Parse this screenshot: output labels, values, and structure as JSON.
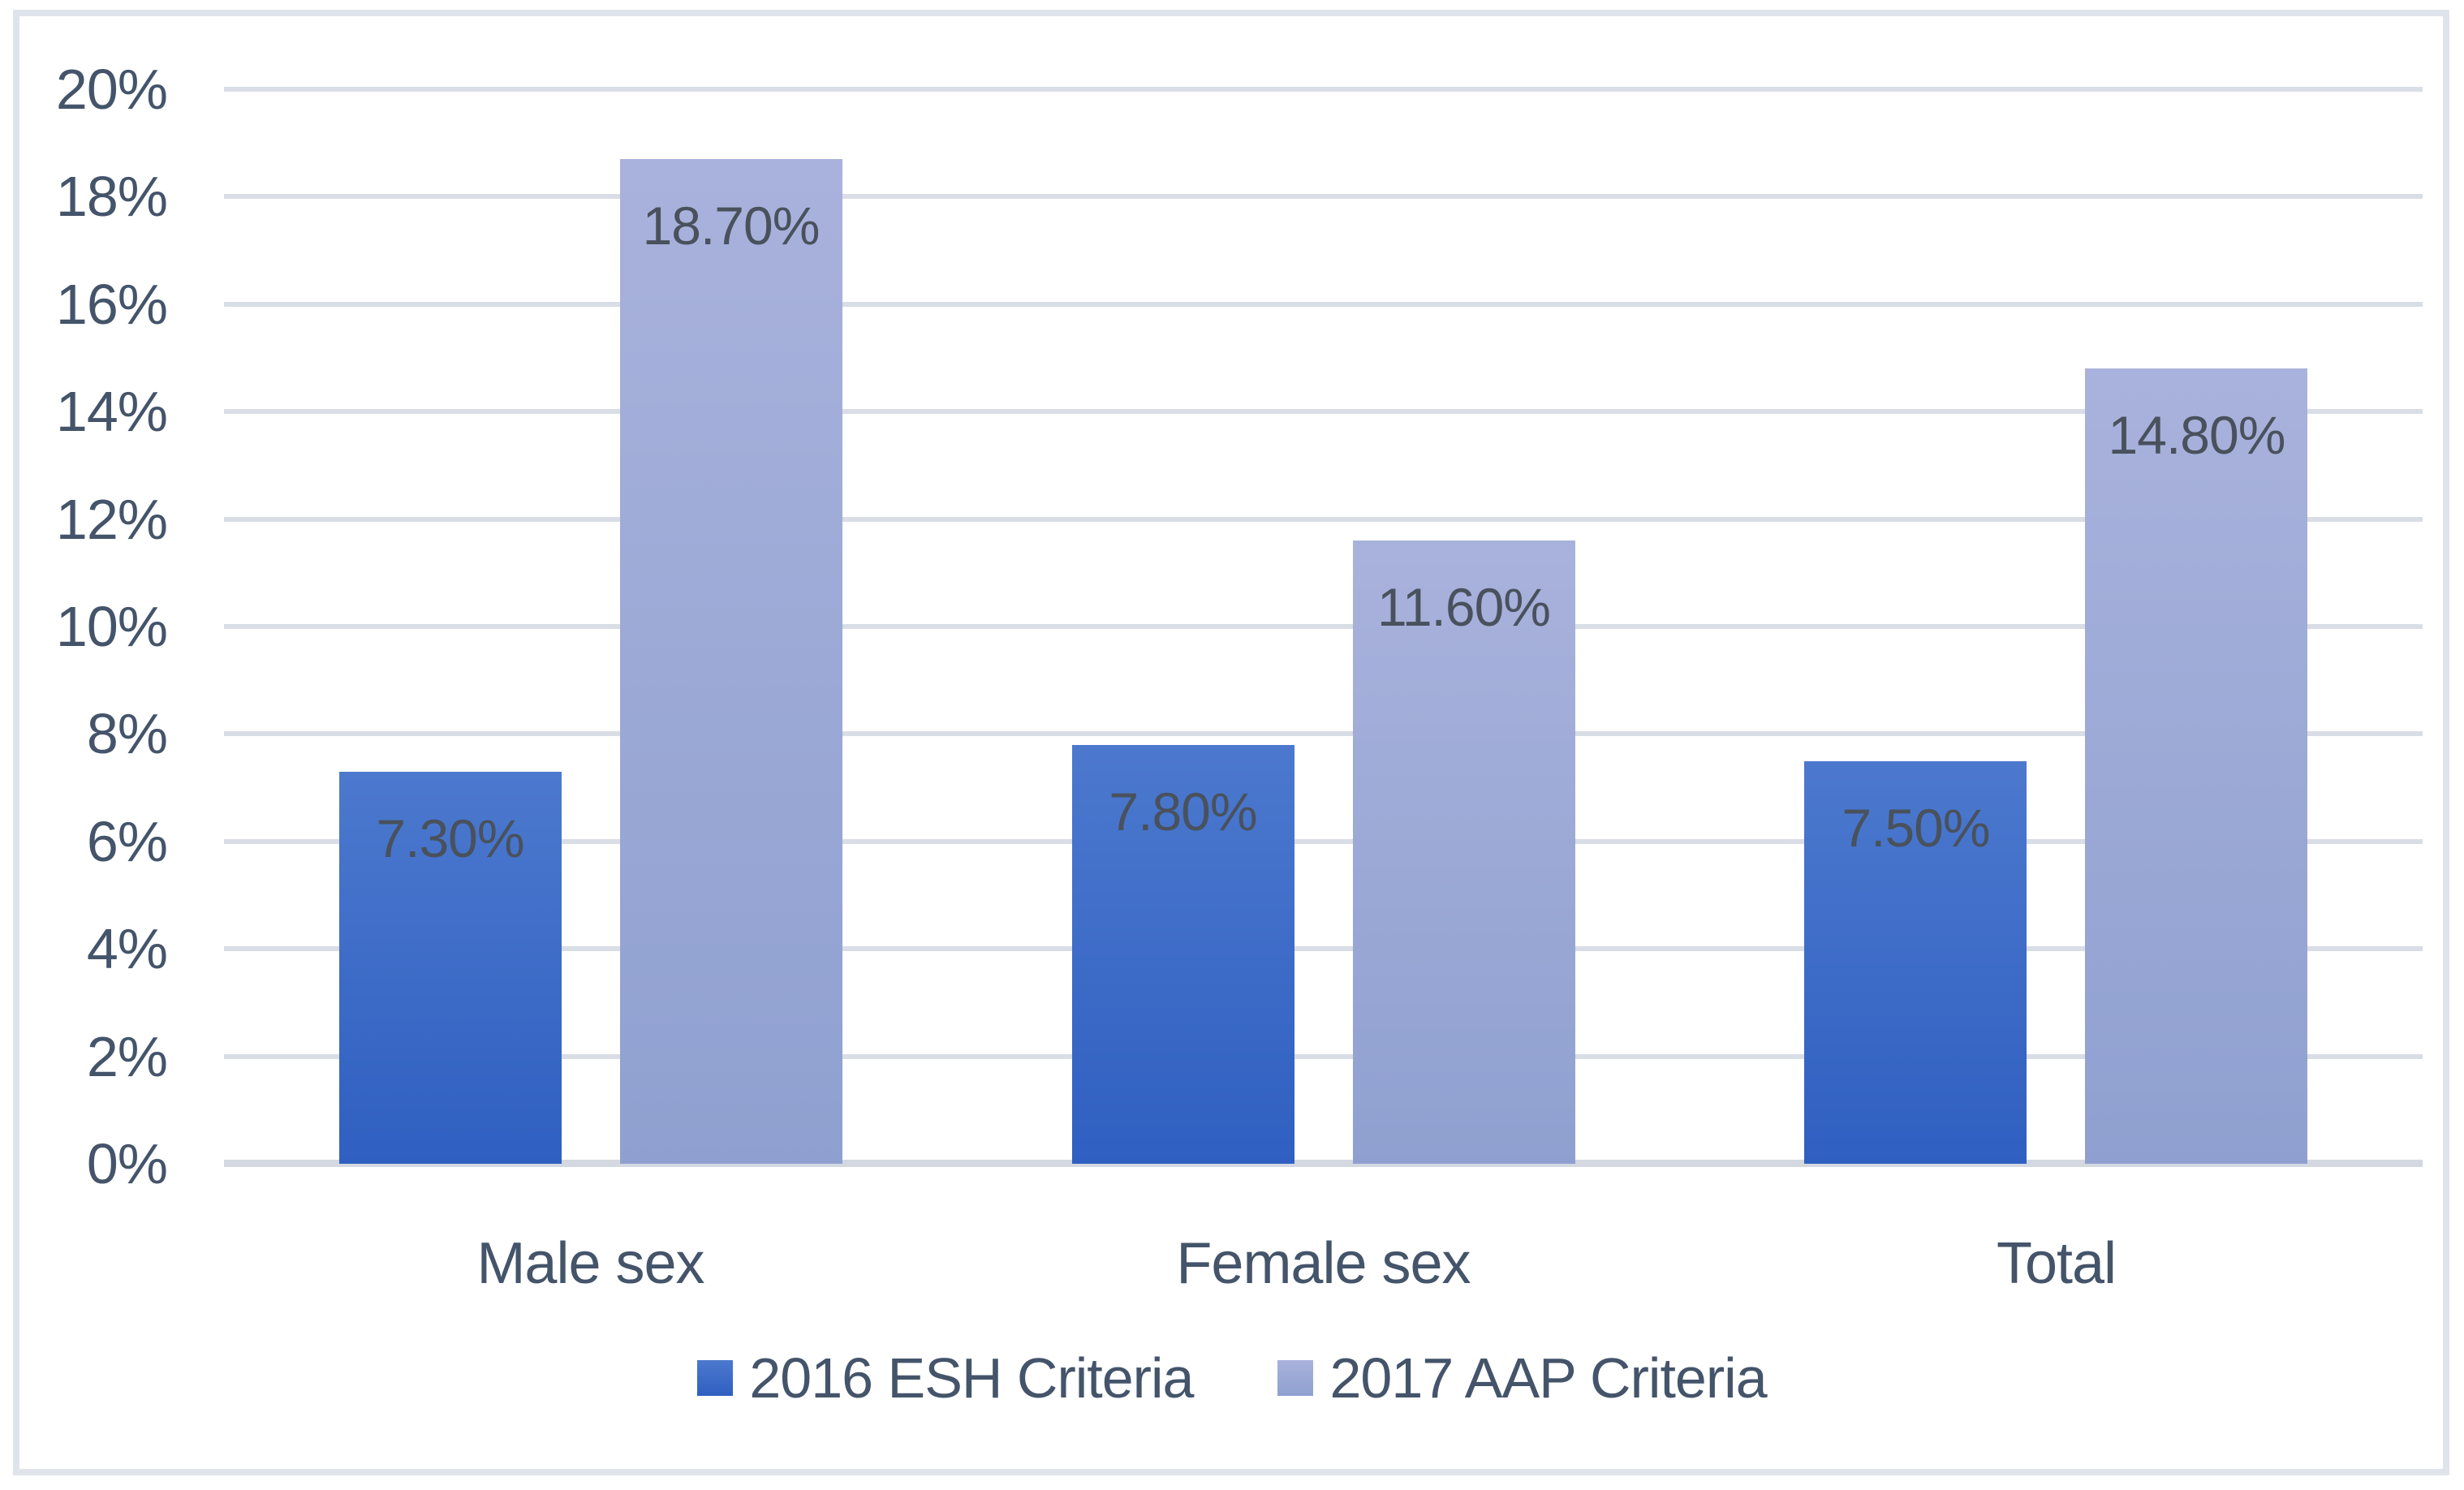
{
  "chart_data": {
    "type": "bar",
    "title": "",
    "xlabel": "",
    "ylabel": "",
    "categories": [
      "Male sex",
      "Female sex",
      "Total"
    ],
    "series": [
      {
        "name": "2016 ESH Criteria",
        "values": [
          7.3,
          7.8,
          7.5
        ],
        "display_values": [
          "7.30%",
          "7.80%",
          "7.50%"
        ],
        "color_top": "#4C79CE",
        "color_bottom": "#2F5FC1"
      },
      {
        "name": "2017 AAP Criteria",
        "values": [
          18.7,
          11.6,
          14.8
        ],
        "display_values": [
          "18.70%",
          "11.60%",
          "14.80%"
        ],
        "color_top": "#A9B2DC",
        "color_bottom": "#8FA0D0"
      }
    ],
    "ylim": [
      0,
      20
    ],
    "yticks": {
      "values": [
        0,
        2,
        4,
        6,
        8,
        10,
        12,
        14,
        16,
        18,
        20
      ],
      "labels": [
        "0%",
        "2%",
        "4%",
        "6%",
        "8%",
        "10%",
        "12%",
        "14%",
        "16%",
        "18%",
        "20%"
      ]
    },
    "grid": "horizontal",
    "legend_position": "bottom",
    "data_labels": "inside-end"
  },
  "colors": {
    "axis_text": "#44546A",
    "data_label_text": "#49515C",
    "gridline": "#D9DDE5",
    "axis_line": "#D3D8E1",
    "frame_border": "#DFE3EA",
    "background": "#FFFFFF"
  }
}
